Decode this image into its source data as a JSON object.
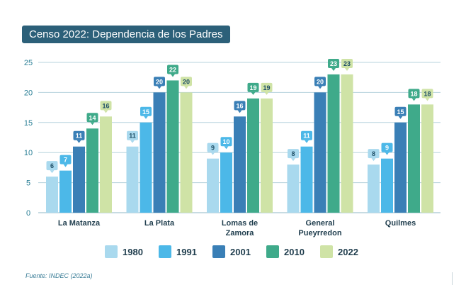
{
  "header": {
    "title": "Censo 2022: Dependencia de los Padres"
  },
  "footer": {
    "source": "Fuente: INDEC (2022a)"
  },
  "chart_data": {
    "type": "bar",
    "title": "Censo 2022: Dependencia de los Padres",
    "xlabel": "",
    "ylabel": "",
    "ylim": [
      0,
      25
    ],
    "yticks": [
      0,
      5,
      10,
      15,
      20,
      25
    ],
    "grid": true,
    "legend_position": "bottom",
    "categories": [
      [
        "La Matanza"
      ],
      [
        "La Plata"
      ],
      [
        "Lomas de",
        "Zamora"
      ],
      [
        "General",
        "Pueyrredon"
      ],
      [
        "Quilmes"
      ]
    ],
    "series": [
      {
        "name": "1980",
        "color": "#a9d9ee",
        "values": [
          6,
          11,
          9,
          8,
          8
        ]
      },
      {
        "name": "1991",
        "color": "#4cb8e8",
        "values": [
          7,
          15,
          10,
          11,
          9
        ]
      },
      {
        "name": "2001",
        "color": "#3a7fb6",
        "values": [
          11,
          20,
          16,
          20,
          15
        ]
      },
      {
        "name": "2010",
        "color": "#3faa8a",
        "values": [
          14,
          22,
          19,
          23,
          18
        ]
      },
      {
        "name": "2022",
        "color": "#cfe3a6",
        "values": [
          16,
          20,
          19,
          23,
          18
        ]
      }
    ]
  }
}
